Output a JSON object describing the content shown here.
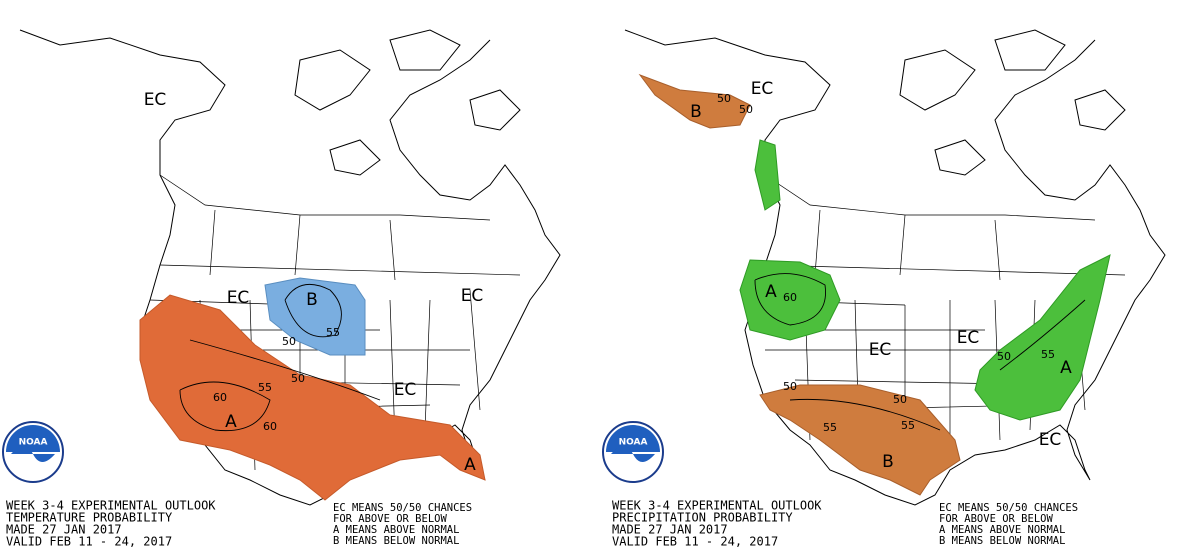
{
  "panels": [
    {
      "map_labels": [
        "EC",
        "EC",
        "EC",
        "EC",
        "B",
        "A",
        "A"
      ],
      "contour_labels": [
        "55",
        "50",
        "55",
        "50",
        "60",
        "60"
      ],
      "logo": "NOAA",
      "footer": [
        "WEEK 3-4 EXPERIMENTAL OUTLOOK",
        "TEMPERATURE PROBABILITY",
        "MADE  27 JAN 2017",
        "VALID  FEB 11 - 24, 2017"
      ],
      "legend": [
        "EC MEANS 50/50 CHANCES",
        "FOR ABOVE OR BELOW",
        "A MEANS ABOVE NORMAL",
        "B MEANS BELOW NORMAL"
      ]
    },
    {
      "map_labels": [
        "EC",
        "B",
        "A",
        "EC",
        "EC",
        "B",
        "A",
        "EC"
      ],
      "contour_labels": [
        "50",
        "50",
        "60",
        "50",
        "50",
        "55",
        "55",
        "50",
        "55"
      ],
      "logo": "NOAA",
      "footer": [
        "WEEK 3-4 EXPERIMENTAL OUTLOOK",
        "PRECIPITATION PROBABILITY",
        "MADE  27 JAN 2017",
        "VALID  FEB 11 - 24, 2017"
      ],
      "legend": [
        "EC MEANS 50/50 CHANCES",
        "FOR ABOVE OR BELOW",
        "A MEANS ABOVE NORMAL",
        "B MEANS BELOW NORMAL"
      ]
    }
  ]
}
